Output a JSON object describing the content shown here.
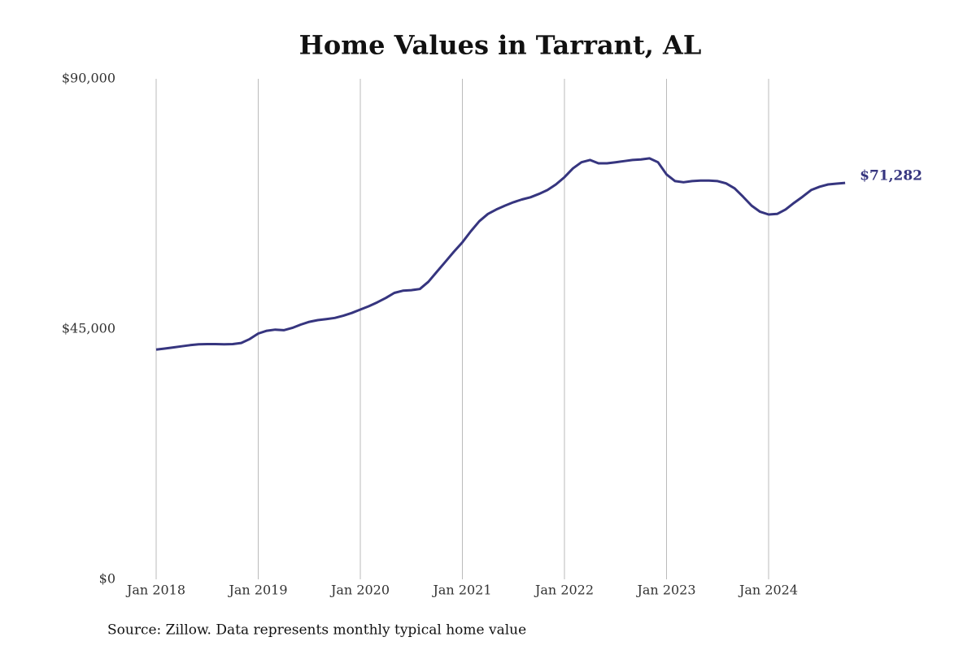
{
  "chart_data": {
    "type": "line",
    "title": "Home Values in Tarrant, AL",
    "source": "Source: Zillow. Data represents monthly typical home value",
    "x": [
      "2018-01",
      "2018-02",
      "2018-03",
      "2018-04",
      "2018-05",
      "2018-06",
      "2018-07",
      "2018-08",
      "2018-09",
      "2018-10",
      "2018-11",
      "2018-12",
      "2019-01",
      "2019-02",
      "2019-03",
      "2019-04",
      "2019-05",
      "2019-06",
      "2019-07",
      "2019-08",
      "2019-09",
      "2019-10",
      "2019-11",
      "2019-12",
      "2020-01",
      "2020-02",
      "2020-03",
      "2020-04",
      "2020-05",
      "2020-06",
      "2020-07",
      "2020-08",
      "2020-09",
      "2020-10",
      "2020-11",
      "2020-12",
      "2021-01",
      "2021-02",
      "2021-03",
      "2021-04",
      "2021-05",
      "2021-06",
      "2021-07",
      "2021-08",
      "2021-09",
      "2021-10",
      "2021-11",
      "2021-12",
      "2022-01",
      "2022-02",
      "2022-03",
      "2022-04",
      "2022-05",
      "2022-06",
      "2022-07",
      "2022-08",
      "2022-09",
      "2022-10",
      "2022-11",
      "2022-12",
      "2023-01",
      "2023-02",
      "2023-03",
      "2023-04",
      "2023-05",
      "2023-06",
      "2023-07",
      "2023-08",
      "2023-09",
      "2023-10",
      "2023-11",
      "2023-12",
      "2024-01",
      "2024-02",
      "2024-03",
      "2024-04",
      "2024-05",
      "2024-06",
      "2024-07",
      "2024-08",
      "2024-09",
      "2024-10"
    ],
    "series": [
      {
        "color": "#36357f",
        "values": [
          41300,
          41500,
          41700,
          41900,
          42100,
          42250,
          42300,
          42300,
          42250,
          42300,
          42500,
          43200,
          44200,
          44700,
          44900,
          44800,
          45200,
          45800,
          46300,
          46600,
          46800,
          47000,
          47400,
          47900,
          48500,
          49100,
          49800,
          50600,
          51500,
          51900,
          52000,
          52200,
          53500,
          55300,
          57100,
          58900,
          60600,
          62600,
          64400,
          65700,
          66500,
          67200,
          67800,
          68300,
          68700,
          69300,
          70000,
          71000,
          72300,
          73900,
          75000,
          75400,
          74800,
          74800,
          75000,
          75200,
          75400,
          75500,
          75700,
          75000,
          72800,
          71600,
          71400,
          71600,
          71700,
          71700,
          71600,
          71200,
          70300,
          68800,
          67200,
          66100,
          65600,
          65700,
          66500,
          67700,
          68800,
          70000,
          70600,
          71000,
          71150,
          71282
        ],
        "value_labels": [
          null,
          null,
          null,
          null,
          null,
          null,
          null,
          null,
          null,
          null,
          null,
          null,
          null,
          null,
          null,
          null,
          null,
          null,
          null,
          null,
          null,
          null,
          null,
          null,
          null,
          null,
          null,
          null,
          null,
          null,
          null,
          null,
          null,
          null,
          null,
          null,
          null,
          null,
          null,
          null,
          null,
          null,
          null,
          null,
          null,
          null,
          null,
          null,
          null,
          null,
          null,
          null,
          null,
          null,
          null,
          null,
          null,
          null,
          null,
          null,
          null,
          null,
          null,
          null,
          null,
          null,
          null,
          null,
          null,
          null,
          null,
          null,
          null,
          null,
          null,
          null,
          null,
          null,
          null,
          null,
          null,
          "$71,282"
        ]
      }
    ],
    "xlim": [
      "2018-01",
      "2024-10"
    ],
    "xticks": [
      {
        "value": "2018-01",
        "label": "Jan 2018"
      },
      {
        "value": "2019-01",
        "label": "Jan 2019"
      },
      {
        "value": "2020-01",
        "label": "Jan 2020"
      },
      {
        "value": "2021-01",
        "label": "Jan 2021"
      },
      {
        "value": "2022-01",
        "label": "Jan 2022"
      },
      {
        "value": "2023-01",
        "label": "Jan 2023"
      },
      {
        "value": "2024-01",
        "label": "Jan 2024"
      }
    ],
    "ylim": [
      0,
      90000
    ],
    "yticks": [
      {
        "value": 0,
        "label": "$0"
      },
      {
        "value": 45000,
        "label": "$45,000"
      },
      {
        "value": 90000,
        "label": "$90,000"
      }
    ],
    "grid": "x"
  }
}
